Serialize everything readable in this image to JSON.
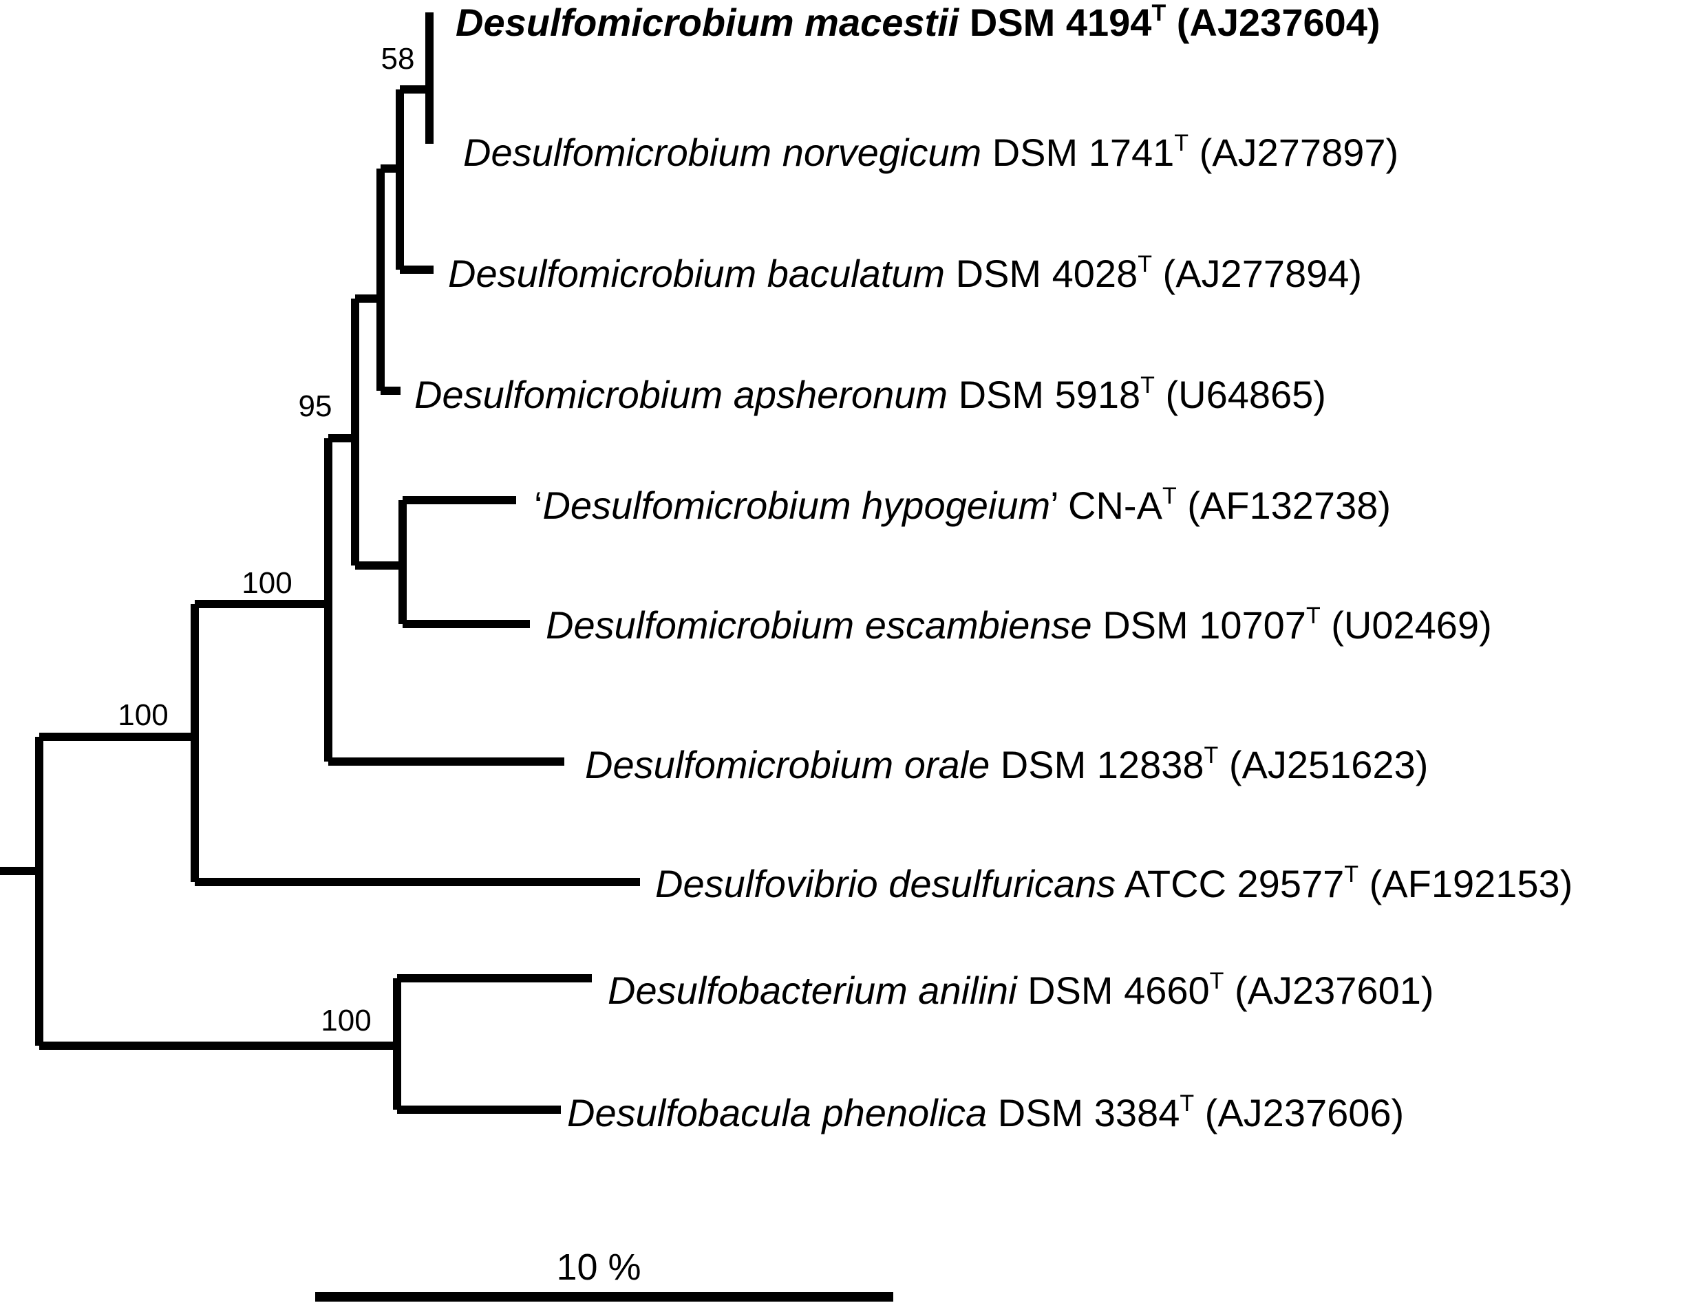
{
  "leaves": [
    {
      "quote_open": "",
      "species": "Desulfomicrobium macestii",
      "quote_close": "",
      "strain": "DSM 4194",
      "sup": "T",
      "accession": "(AJ237604)",
      "bold": true
    },
    {
      "quote_open": "",
      "species": "Desulfomicrobium norvegicum",
      "quote_close": "",
      "strain": "DSM 1741",
      "sup": "T",
      "accession": "(AJ277897)",
      "bold": false
    },
    {
      "quote_open": "",
      "species": "Desulfomicrobium baculatum",
      "quote_close": "",
      "strain": "DSM 4028",
      "sup": "T",
      "accession": "(AJ277894)",
      "bold": false
    },
    {
      "quote_open": "",
      "species": "Desulfomicrobium apsheronum",
      "quote_close": "",
      "strain": "DSM 5918",
      "sup": "T",
      "accession": "(U64865)",
      "bold": false
    },
    {
      "quote_open": "‘",
      "species": "Desulfomicrobium hypogeium",
      "quote_close": "’",
      "strain": "CN-A",
      "sup": "T",
      "accession": "(AF132738)",
      "bold": false
    },
    {
      "quote_open": "",
      "species": "Desulfomicrobium escambiense",
      "quote_close": "",
      "strain": "DSM 10707",
      "sup": "T",
      "accession": "(U02469)",
      "bold": false
    },
    {
      "quote_open": "",
      "species": "Desulfomicrobium orale",
      "quote_close": "",
      "strain": "DSM 12838",
      "sup": "T",
      "accession": "(AJ251623)",
      "bold": false
    },
    {
      "quote_open": "",
      "species": "Desulfovibrio desulfuricans",
      "quote_close": "",
      "strain": "ATCC 29577",
      "sup": "T",
      "accession": "(AF192153)",
      "bold": false
    },
    {
      "quote_open": "",
      "species": "Desulfobacterium anilini",
      "quote_close": "",
      "strain": "DSM 4660",
      "sup": "T",
      "accession": "(AJ237601)",
      "bold": false
    },
    {
      "quote_open": "",
      "species": "Desulfobacula phenolica",
      "quote_close": "",
      "strain": "DSM 3384",
      "sup": "T",
      "accession": "(AJ237606)",
      "bold": false
    }
  ],
  "bootstrap": {
    "node_58": "58",
    "node_95": "95",
    "node_100_desulfomicrobium": "100",
    "node_100_ingroup": "100",
    "node_100_outgroup": "100"
  },
  "scale_bar": {
    "label": "10 %"
  }
}
